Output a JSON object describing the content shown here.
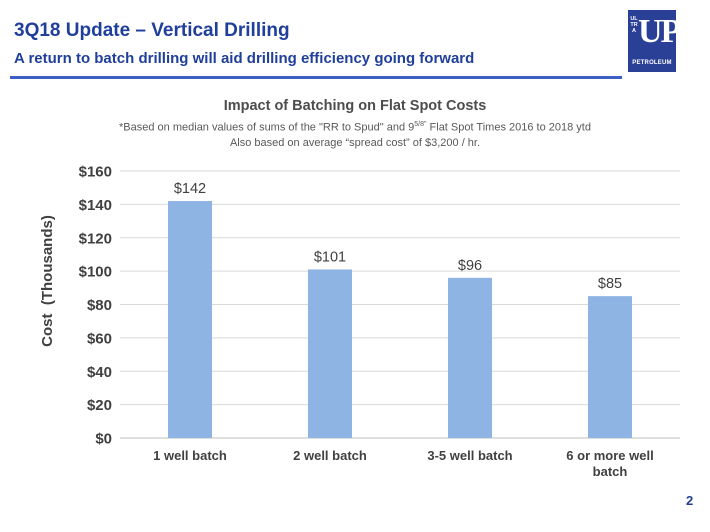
{
  "slide": {
    "title": "3Q18 Update – Vertical Drilling",
    "subtitle": "A return to batch drilling will aid drilling efficiency going forward",
    "page_number": "2",
    "logo": {
      "side_text": "ULTRA",
      "main_text": "UP",
      "bottom_text": "PETROLEUM"
    }
  },
  "colors": {
    "title": "#1f3f9b",
    "bar": "#8db4e3",
    "logo_bg": "#2a3f96",
    "grid": "#d9d9d9"
  },
  "chart_data": {
    "type": "bar",
    "title": "Impact of Batching on Flat Spot Costs",
    "notes": {
      "line1_before": "*Based on median values of sums of the \"RR to Spud\" and 9",
      "line1_sup": "5/8\"",
      "line1_after": " Flat Spot Times 2016 to 2018 ytd",
      "line2": "Also based on average “spread cost” of $3,200 / hr."
    },
    "categories": [
      "1 well batch",
      "2 well batch",
      "3-5 well batch",
      "6 or more well batch"
    ],
    "values": [
      142,
      101,
      96,
      85
    ],
    "data_labels": [
      "$142",
      "$101",
      "$96",
      "$85"
    ],
    "ylabel": "Cost  (Thousands)",
    "xlabel": "",
    "ylim": [
      0,
      160
    ],
    "yticks": [
      0,
      20,
      40,
      60,
      80,
      100,
      120,
      140,
      160
    ],
    "ytick_labels": [
      "$0",
      "$20",
      "$40",
      "$60",
      "$80",
      "$100",
      "$120",
      "$140",
      "$160"
    ],
    "grid": true,
    "legend": "none"
  }
}
